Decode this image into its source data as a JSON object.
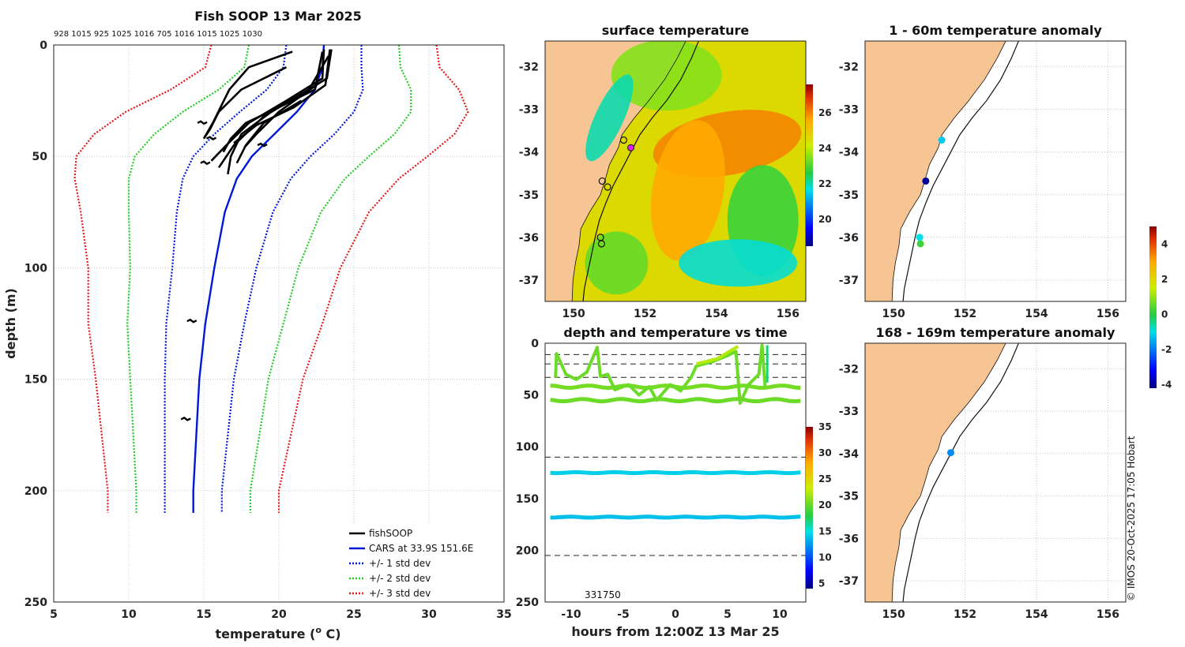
{
  "chart_data": [
    {
      "id": "profile",
      "type": "line",
      "title": "Fish SOOP 13 Mar 2025",
      "xlabel": "temperature (",
      "xlabel_sup": "o",
      "xlabel_tail": " C)",
      "ylabel": "depth (m)",
      "xlim": [
        5,
        35
      ],
      "ylim": [
        0,
        250
      ],
      "xticks": [
        5,
        10,
        15,
        20,
        25,
        30,
        35
      ],
      "yticks": [
        0,
        50,
        100,
        150,
        200,
        250
      ],
      "top_labels": "928 1015 925 1025 1016 705 1016 1015 1025 1030",
      "depths": [
        0,
        10,
        20,
        30,
        40,
        50,
        60,
        75,
        100,
        125,
        150,
        175,
        200,
        210
      ],
      "cars_mean": [
        23.0,
        22.9,
        22.4,
        21.2,
        19.7,
        18.2,
        17.2,
        16.4,
        15.7,
        15.1,
        14.7,
        14.5,
        14.3,
        14.3
      ],
      "series": [
        {
          "name": "fishSOOP",
          "color": "#000000"
        },
        {
          "name": "CARS at 33.9S 151.6E",
          "color": "#0018d8"
        },
        {
          "name": "+/- 1 std dev",
          "color": "#0018d8",
          "k": 1
        },
        {
          "name": "+/- 2 std dev",
          "color": "#22cc22",
          "k": 2
        },
        {
          "name": "+/- 3 std dev",
          "color": "#e41a1a",
          "k": 3
        }
      ],
      "std": [
        2.5,
        2.6,
        3.2,
        3.8,
        4.0,
        3.9,
        3.6,
        3.2,
        2.8,
        2.6,
        2.3,
        2.1,
        1.9,
        1.9
      ],
      "fish_profiles": [
        [
          [
            20.9,
            3
          ],
          [
            18.0,
            10
          ],
          [
            16.7,
            20
          ],
          [
            15.6,
            35
          ],
          [
            15.0,
            42
          ]
        ],
        [
          [
            23.0,
            2
          ],
          [
            22.9,
            15
          ],
          [
            20.5,
            25
          ],
          [
            18.0,
            35
          ],
          [
            16.5,
            45
          ],
          [
            15.5,
            52
          ]
        ],
        [
          [
            23.5,
            2
          ],
          [
            23.2,
            15
          ],
          [
            21.5,
            22
          ],
          [
            19.0,
            32
          ],
          [
            17.0,
            45
          ],
          [
            16.0,
            55
          ]
        ],
        [
          [
            23.4,
            2
          ],
          [
            23.1,
            18
          ],
          [
            21.0,
            28
          ],
          [
            18.5,
            36
          ],
          [
            17.0,
            44
          ]
        ],
        [
          [
            22.9,
            3
          ],
          [
            22.4,
            20
          ],
          [
            20.0,
            28
          ],
          [
            17.8,
            35
          ],
          [
            16.8,
            42
          ],
          [
            16.3,
            48
          ]
        ],
        [
          [
            20.5,
            10
          ],
          [
            17.5,
            20
          ],
          [
            16.0,
            30
          ],
          [
            15.4,
            38
          ],
          [
            15.0,
            42
          ]
        ],
        [
          [
            23.3,
            5
          ],
          [
            22.0,
            20
          ],
          [
            19.5,
            30
          ],
          [
            17.5,
            40
          ],
          [
            16.8,
            50
          ],
          [
            16.6,
            58
          ]
        ],
        [
          [
            21.5,
            25
          ],
          [
            19.0,
            35
          ],
          [
            17.8,
            45
          ],
          [
            17.2,
            53
          ]
        ],
        [
          [
            22.5,
            18
          ],
          [
            20.0,
            30
          ],
          [
            18.5,
            40
          ],
          [
            17.7,
            46
          ]
        ]
      ],
      "fish_blobs": [
        [
          14.9,
          35
        ],
        [
          15.5,
          42
        ],
        [
          15.1,
          53
        ],
        [
          18.9,
          45
        ],
        [
          14.2,
          124
        ],
        [
          13.8,
          168
        ]
      ]
    },
    {
      "id": "sst",
      "type": "heatmap",
      "title": "surface temperature",
      "xticks": [
        150,
        152,
        154,
        156
      ],
      "yticks": [
        -32,
        -33,
        -34,
        -35,
        -36,
        -37
      ],
      "lon_range": [
        149.2,
        156.5
      ],
      "lat_range": [
        -37.5,
        -31.4
      ],
      "colorbar_ticks": [
        20,
        22,
        24,
        26
      ],
      "colorbar_range": [
        18.5,
        27.6
      ]
    },
    {
      "id": "timeseries",
      "type": "line",
      "title": "depth and temperature vs time",
      "xlabel": "hours from 12:00Z 13 Mar 25",
      "xlim": [
        -12.5,
        12.5
      ],
      "ylim": [
        0,
        250
      ],
      "xticks": [
        -10,
        -5,
        0,
        5,
        10
      ],
      "yticks": [
        0,
        50,
        100,
        150,
        200,
        250
      ],
      "dashed_depths": [
        11,
        20,
        33,
        110,
        205
      ],
      "bottom_label": "331750",
      "colorbar_ticks": [
        5,
        10,
        15,
        20,
        25,
        30,
        35
      ],
      "colorbar_range": [
        4,
        35
      ],
      "tracks": [
        {
          "depth": 42,
          "temp": 20.5
        },
        {
          "depth": 55,
          "temp": 20.2
        },
        {
          "depth": 125,
          "temp": 14.3
        },
        {
          "depth": 168,
          "temp": 13.8
        }
      ]
    },
    {
      "id": "anom_surface",
      "type": "scatter",
      "title": "1 - 60m temperature anomaly",
      "xticks": [
        150,
        152,
        154,
        156
      ],
      "yticks": [
        -32,
        -33,
        -34,
        -35,
        -36,
        -37
      ],
      "points": [
        {
          "lon": 151.35,
          "lat": -33.72,
          "anomaly": -1.2
        },
        {
          "lon": 150.9,
          "lat": -34.68,
          "anomaly": -4.0
        },
        {
          "lon": 150.73,
          "lat": -36.0,
          "anomaly": -1.0
        },
        {
          "lon": 150.75,
          "lat": -36.15,
          "anomaly": 0.2
        }
      ]
    },
    {
      "id": "anom_deep",
      "type": "scatter",
      "title": "168 - 169m temperature anomaly",
      "xticks": [
        150,
        152,
        154,
        156
      ],
      "yticks": [
        -32,
        -33,
        -34,
        -35,
        -36,
        -37
      ],
      "points": [
        {
          "lon": 151.6,
          "lat": -33.98,
          "anomaly": -1.8
        }
      ]
    },
    {
      "id": "anomaly_colorbar",
      "type": "colorbar",
      "ticks": [
        4,
        2,
        0,
        -2,
        -4
      ],
      "range": [
        -4.2,
        5
      ]
    }
  ],
  "credit": "© IMOS 20-Oct-2025 17:05 Hobart"
}
